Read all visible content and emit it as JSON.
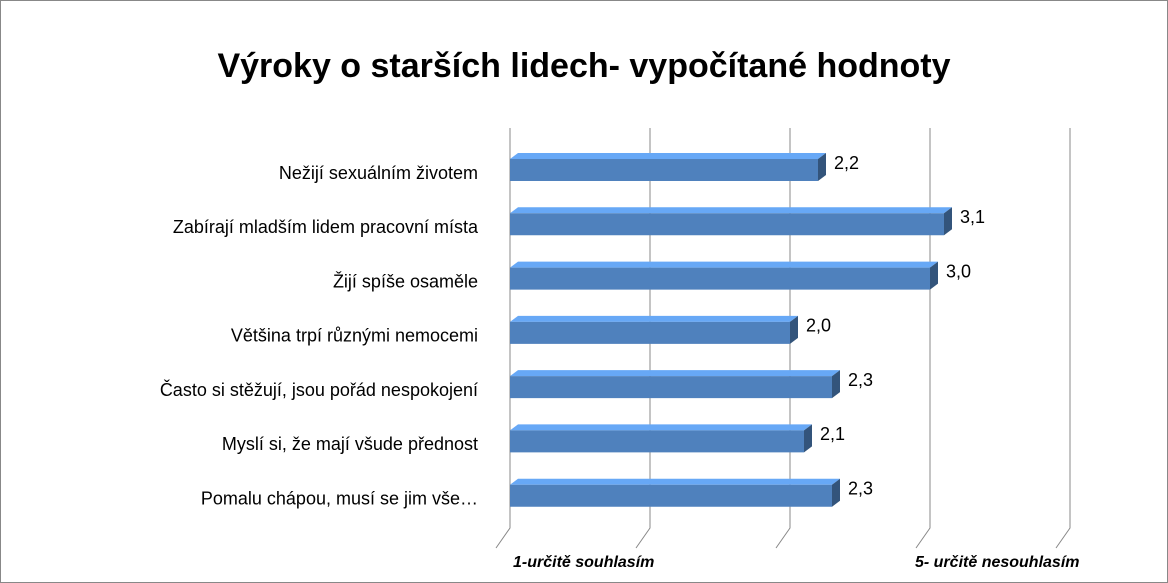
{
  "chart_data": {
    "type": "bar3d_horizontal",
    "title": "Výroky o starších lidech- vypočítané hodnoty",
    "categories": [
      "Nežijí sexuálním životem",
      "Zabírají mladším lidem pracovní místa",
      "Žijí spíše osaměle",
      "Většina trpí různými nemocemi",
      "Často si stěžují, jsou pořád nespokojení",
      "Myslí si, že mají všude přednost",
      "Pomalu chápou, musí se jim vše…"
    ],
    "values": [
      2.2,
      3.1,
      3.0,
      2.0,
      2.3,
      2.1,
      2.3
    ],
    "value_labels": [
      "2,2",
      "3,1",
      "3,0",
      "2,0",
      "2,3",
      "2,1",
      "2,3"
    ],
    "color": "#4f81bd",
    "xlim": [
      0,
      4
    ],
    "xticks": [
      0,
      1,
      2,
      3,
      4
    ],
    "grid": true,
    "annotations": [
      "1-určitě souhlasím",
      "5- určitě nesouhlasím"
    ]
  }
}
